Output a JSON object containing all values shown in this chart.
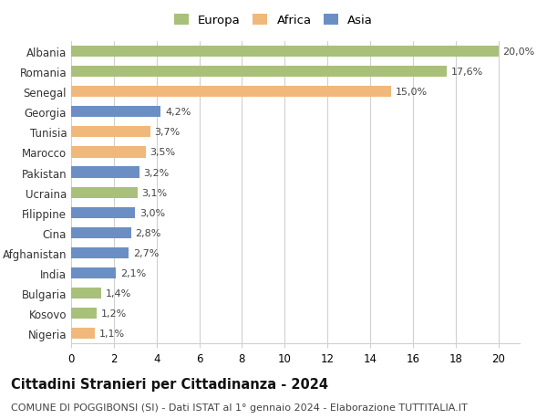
{
  "categories": [
    "Nigeria",
    "Kosovo",
    "Bulgaria",
    "India",
    "Afghanistan",
    "Cina",
    "Filippine",
    "Ucraina",
    "Pakistan",
    "Marocco",
    "Tunisia",
    "Georgia",
    "Senegal",
    "Romania",
    "Albania"
  ],
  "values": [
    1.1,
    1.2,
    1.4,
    2.1,
    2.7,
    2.8,
    3.0,
    3.1,
    3.2,
    3.5,
    3.7,
    4.2,
    15.0,
    17.6,
    20.0
  ],
  "labels": [
    "1,1%",
    "1,2%",
    "1,4%",
    "2,1%",
    "2,7%",
    "2,8%",
    "3,0%",
    "3,1%",
    "3,2%",
    "3,5%",
    "3,7%",
    "4,2%",
    "15,0%",
    "17,6%",
    "20,0%"
  ],
  "colors": [
    "#f0b87a",
    "#a8c07a",
    "#a8c07a",
    "#6b8fc4",
    "#6b8fc4",
    "#6b8fc4",
    "#6b8fc4",
    "#a8c07a",
    "#6b8fc4",
    "#f0b87a",
    "#f0b87a",
    "#6b8fc4",
    "#f0b87a",
    "#a8c07a",
    "#a8c07a"
  ],
  "legend_labels": [
    "Europa",
    "Africa",
    "Asia"
  ],
  "legend_colors": [
    "#a8c07a",
    "#f0b87a",
    "#6b8fc4"
  ],
  "title": "Cittadini Stranieri per Cittadinanza - 2024",
  "subtitle": "COMUNE DI POGGIBONSI (SI) - Dati ISTAT al 1° gennaio 2024 - Elaborazione TUTTITALIA.IT",
  "xlim": [
    0,
    21
  ],
  "xticks": [
    0,
    2,
    4,
    6,
    8,
    10,
    12,
    14,
    16,
    18,
    20
  ],
  "bg_color": "#ffffff",
  "grid_color": "#d0d0d0",
  "bar_height": 0.55,
  "title_fontsize": 10.5,
  "subtitle_fontsize": 8,
  "tick_fontsize": 8.5,
  "label_fontsize": 8,
  "legend_fontsize": 9.5
}
